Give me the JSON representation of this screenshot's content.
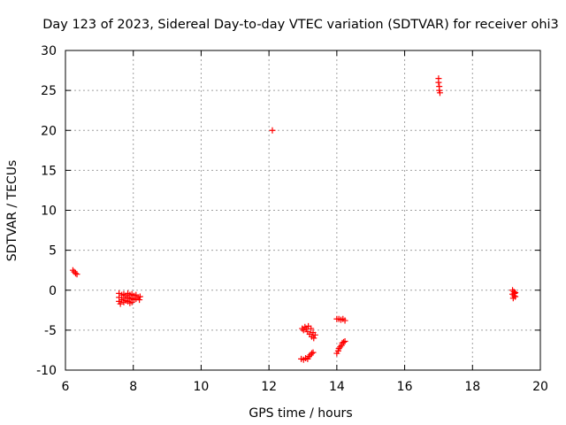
{
  "chart_data": {
    "type": "scatter",
    "title": "Day 123 of 2023, Sidereal Day-to-day VTEC variation (SDTVAR) for receiver ohi3",
    "xlabel": "GPS time / hours",
    "ylabel": "SDTVAR / TECUs",
    "xlim": [
      6,
      20
    ],
    "ylim": [
      -10,
      30
    ],
    "xticks": [
      6,
      8,
      10,
      12,
      14,
      16,
      18,
      20
    ],
    "yticks": [
      -10,
      -5,
      0,
      5,
      10,
      15,
      20,
      25,
      30
    ],
    "grid": true,
    "marker": "+",
    "color": "#ff0000",
    "series": [
      {
        "name": "SDTVAR",
        "points": [
          [
            6.22,
            2.5
          ],
          [
            6.26,
            2.3
          ],
          [
            6.3,
            2.1
          ],
          [
            6.34,
            2.0
          ],
          [
            7.58,
            -0.4
          ],
          [
            7.58,
            -0.9
          ],
          [
            7.58,
            -1.4
          ],
          [
            7.62,
            -1.7
          ],
          [
            7.66,
            -0.6
          ],
          [
            7.66,
            -1.2
          ],
          [
            7.72,
            -0.5
          ],
          [
            7.72,
            -1.0
          ],
          [
            7.72,
            -1.5
          ],
          [
            7.78,
            -0.7
          ],
          [
            7.78,
            -1.3
          ],
          [
            7.84,
            -0.4
          ],
          [
            7.84,
            -0.9
          ],
          [
            7.84,
            -1.4
          ],
          [
            7.9,
            -0.6
          ],
          [
            7.9,
            -1.1
          ],
          [
            7.9,
            -1.6
          ],
          [
            7.96,
            -0.5
          ],
          [
            7.96,
            -1.0
          ],
          [
            7.96,
            -1.5
          ],
          [
            8.02,
            -0.7
          ],
          [
            8.02,
            -1.2
          ],
          [
            8.08,
            -0.6
          ],
          [
            8.08,
            -1.1
          ],
          [
            8.14,
            -0.9
          ],
          [
            8.18,
            -1.2
          ],
          [
            8.2,
            -0.8
          ],
          [
            12.1,
            20.0
          ],
          [
            12.95,
            -8.6
          ],
          [
            13.02,
            -8.7
          ],
          [
            13.08,
            -8.5
          ],
          [
            13.14,
            -8.6
          ],
          [
            13.18,
            -8.3
          ],
          [
            13.22,
            -8.1
          ],
          [
            13.26,
            -7.9
          ],
          [
            13.3,
            -7.8
          ],
          [
            12.98,
            -4.8
          ],
          [
            13.02,
            -5.0
          ],
          [
            13.06,
            -4.6
          ],
          [
            13.1,
            -4.8
          ],
          [
            13.14,
            -5.2
          ],
          [
            13.16,
            -4.5
          ],
          [
            13.2,
            -5.5
          ],
          [
            13.24,
            -4.8
          ],
          [
            13.26,
            -5.8
          ],
          [
            13.3,
            -5.3
          ],
          [
            13.32,
            -6.0
          ],
          [
            13.36,
            -5.6
          ],
          [
            14.0,
            -3.6
          ],
          [
            14.06,
            -3.6
          ],
          [
            14.12,
            -3.7
          ],
          [
            14.18,
            -3.6
          ],
          [
            14.24,
            -3.8
          ],
          [
            14.0,
            -7.9
          ],
          [
            14.04,
            -7.6
          ],
          [
            14.06,
            -7.3
          ],
          [
            14.1,
            -7.1
          ],
          [
            14.14,
            -6.9
          ],
          [
            14.16,
            -6.6
          ],
          [
            14.2,
            -6.5
          ],
          [
            14.24,
            -6.4
          ],
          [
            17.0,
            26.5
          ],
          [
            17.0,
            26.0
          ],
          [
            17.02,
            25.5
          ],
          [
            17.02,
            25.0
          ],
          [
            17.04,
            24.7
          ],
          [
            19.18,
            0.0
          ],
          [
            19.22,
            -0.2
          ],
          [
            19.26,
            -0.3
          ],
          [
            19.18,
            -0.5
          ],
          [
            19.22,
            -0.7
          ],
          [
            19.26,
            -0.8
          ],
          [
            19.2,
            -1.0
          ],
          [
            19.24,
            -0.4
          ]
        ]
      }
    ]
  }
}
